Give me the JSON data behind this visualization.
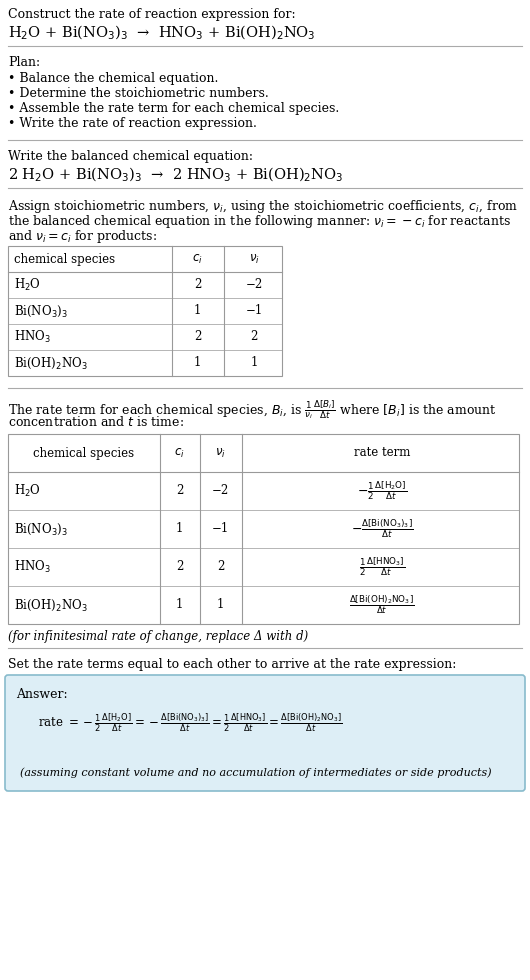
{
  "bg_color": "#ffffff",
  "text_color": "#000000",
  "line_color": "#aaaaaa",
  "answer_bg": "#ddeef6",
  "answer_border": "#88bbcc",
  "sections": {
    "title1": "Construct the rate of reaction expression for:",
    "rxn_unbal": "H$_2$O + Bi(NO$_3$)$_3$  →  HNO$_3$ + Bi(OH)$_2$NO$_3$",
    "plan_header": "Plan:",
    "plan_items": [
      "• Balance the chemical equation.",
      "• Determine the stoichiometric numbers.",
      "• Assemble the rate term for each chemical species.",
      "• Write the rate of reaction expression."
    ],
    "bal_header": "Write the balanced chemical equation:",
    "rxn_bal": "2 H$_2$O + Bi(NO$_3$)$_3$  →  2 HNO$_3$ + Bi(OH)$_2$NO$_3$",
    "stoich_para": [
      "Assign stoichiometric numbers, $\\nu_i$, using the stoichiometric coefficients, $c_i$, from",
      "the balanced chemical equation in the following manner: $\\nu_i = -c_i$ for reactants",
      "and $\\nu_i = c_i$ for products:"
    ],
    "table1_cols": [
      "chemical species",
      "$c_i$",
      "$\\nu_i$"
    ],
    "table1_rows": [
      [
        "H$_2$O",
        "2",
        "−2"
      ],
      [
        "Bi(NO$_3$)$_3$",
        "1",
        "−1"
      ],
      [
        "HNO$_3$",
        "2",
        "2"
      ],
      [
        "Bi(OH)$_2$NO$_3$",
        "1",
        "1"
      ]
    ],
    "rate_para": [
      "The rate term for each chemical species, $B_i$, is $\\frac{1}{\\nu_i}\\frac{\\Delta[B_i]}{\\Delta t}$ where $[B_i]$ is the amount",
      "concentration and $t$ is time:"
    ],
    "table2_cols": [
      "chemical species",
      "$c_i$",
      "$\\nu_i$",
      "rate term"
    ],
    "table2_rows": [
      [
        "H$_2$O",
        "2",
        "−2",
        "$-\\frac{1}{2}\\frac{\\Delta[\\mathrm{H_2O}]}{\\Delta t}$"
      ],
      [
        "Bi(NO$_3$)$_3$",
        "1",
        "−1",
        "$-\\frac{\\Delta[\\mathrm{Bi(NO_3)_3}]}{\\Delta t}$"
      ],
      [
        "HNO$_3$",
        "2",
        "2",
        "$\\frac{1}{2}\\frac{\\Delta[\\mathrm{HNO_3}]}{\\Delta t}$"
      ],
      [
        "Bi(OH)$_2$NO$_3$",
        "1",
        "1",
        "$\\frac{\\Delta[\\mathrm{Bi(OH)_2NO_3}]}{\\Delta t}$"
      ]
    ],
    "infinitesimal": "(for infinitesimal rate of change, replace Δ with d)",
    "set_equal": "Set the rate terms equal to each other to arrive at the rate expression:",
    "answer_label": "Answer:",
    "rate_eq_parts": [
      "rate $= -\\frac{1}{2}\\frac{\\Delta[\\mathrm{H_2O}]}{\\Delta t} = -\\frac{\\Delta[\\mathrm{Bi(NO_3)_3}]}{\\Delta t} = \\frac{1}{2}\\frac{\\Delta[\\mathrm{HNO_3}]}{\\Delta t} = \\frac{\\Delta[\\mathrm{Bi(OH)_2NO_3}]}{\\Delta t}$"
    ],
    "assuming": "(assuming constant volume and no accumulation of intermediates or side products)"
  }
}
